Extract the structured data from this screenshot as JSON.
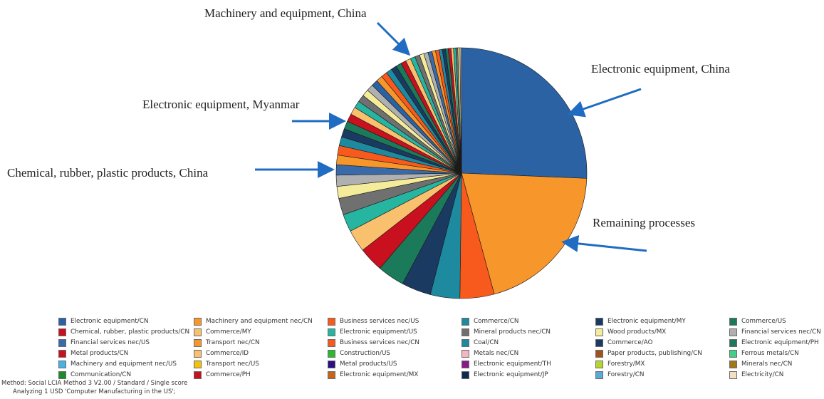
{
  "chart_data": {
    "type": "pie",
    "title": "",
    "colors": [
      "#2a62a3",
      "#f7962a",
      "#f75a1c",
      "#1e8aa0",
      "#1b3a62",
      "#1a7a5a",
      "#c8101f",
      "#f9c06e",
      "#26b5a0",
      "#707070",
      "#f4ec9a",
      "#b0b0b0",
      "#3a6aa8",
      "#f7962a",
      "#f75a1c",
      "#1e8aa0",
      "#1b3a62",
      "#1a7a5a",
      "#c8101f",
      "#f9c06e",
      "#26b5a0",
      "#707070",
      "#f4ec9a",
      "#b0b0b0"
    ],
    "slices": [
      {
        "label": "Electronic equipment/CN",
        "value": 25.0
      },
      {
        "label": "Remaining processes",
        "value": 19.6
      },
      {
        "label": "Machinery and equipment nec/CN",
        "value": 4.3
      },
      {
        "label": "Business services nec/US",
        "value": 3.7
      },
      {
        "label": "Commerce/CN",
        "value": 3.7
      },
      {
        "label": "Electronic equipment/MY",
        "value": 3.4
      },
      {
        "label": "Commerce/US",
        "value": 3.1
      },
      {
        "label": "Chemical, rubber, plastic products/CN",
        "value": 2.8
      },
      {
        "label": "Commerce/MY",
        "value": 2.2
      },
      {
        "label": "Electronic equipment/US",
        "value": 2.1
      },
      {
        "label": "Mineral products nec/CN",
        "value": 1.5
      },
      {
        "label": "Wood products/MX",
        "value": 1.4
      },
      {
        "label": "Financial services nec/CN",
        "value": 1.3
      },
      {
        "label": "Financial services nec/US",
        "value": 1.2
      },
      {
        "label": "Transport nec/CN",
        "value": 1.2
      },
      {
        "label": "Business services nec/CN",
        "value": 1.1
      },
      {
        "label": "Coal/CN",
        "value": 1.05
      },
      {
        "label": "Commerce/AO",
        "value": 1.0
      },
      {
        "label": "Electronic equipment/PH",
        "value": 1.0
      },
      {
        "label": "Metal products/CN",
        "value": 0.95
      },
      {
        "label": "Commerce/ID",
        "value": 0.9
      },
      {
        "label": "Construction/US",
        "value": 0.9
      },
      {
        "label": "Metals nec/CN",
        "value": 0.85
      },
      {
        "label": "Paper products, publishing/CN",
        "value": 0.85
      },
      {
        "label": "Ferrous metals/CN",
        "value": 0.8
      },
      {
        "label": "Machinery and equipment nec/US",
        "value": 0.8
      },
      {
        "label": "Transport nec/US",
        "value": 0.75
      },
      {
        "label": "Metal products/US",
        "value": 0.75
      },
      {
        "label": "Electronic equipment/TH",
        "value": 0.7
      },
      {
        "label": "Forestry/MX",
        "value": 0.7
      },
      {
        "label": "Minerals nec/CN",
        "value": 0.65
      },
      {
        "label": "Communication/CN",
        "value": 0.65
      },
      {
        "label": "Commerce/PH",
        "value": 0.6
      },
      {
        "label": "Electronic equipment/MX",
        "value": 0.6
      },
      {
        "label": "Electronic equipment/JP",
        "value": 0.55
      },
      {
        "label": "Forestry/CN",
        "value": 0.55
      },
      {
        "label": "Electricity/CN",
        "value": 0.5
      },
      {
        "label": "",
        "value": 0.45
      },
      {
        "label": "",
        "value": 0.45
      },
      {
        "label": "",
        "value": 0.4
      },
      {
        "label": "",
        "value": 0.4
      },
      {
        "label": "",
        "value": 0.35
      },
      {
        "label": "",
        "value": 0.35
      },
      {
        "label": "",
        "value": 0.3
      },
      {
        "label": "",
        "value": 0.3
      },
      {
        "label": "",
        "value": 0.25
      },
      {
        "label": "",
        "value": 0.25
      },
      {
        "label": "",
        "value": 0.2
      }
    ],
    "legend_position": "bottom",
    "annotations": [
      "Machinery and equipment, China",
      "Electronic equipment, China",
      "Electronic equipment, Myanmar",
      "Chemical, rubber, plastic products, China",
      "Remaining processes"
    ],
    "legend": [
      {
        "label": "Electronic equipment/CN",
        "color": "#2a62a3"
      },
      {
        "label": "Machinery and equipment nec/CN",
        "color": "#f7962a"
      },
      {
        "label": "Business services nec/US",
        "color": "#f75a1c"
      },
      {
        "label": "Commerce/CN",
        "color": "#1e8aa0"
      },
      {
        "label": "Electronic equipment/MY",
        "color": "#1b3a62"
      },
      {
        "label": "Commerce/US",
        "color": "#1a7a5a"
      },
      {
        "label": "Chemical, rubber, plastic products/CN",
        "color": "#c8101f"
      },
      {
        "label": "Commerce/MY",
        "color": "#f9c06e"
      },
      {
        "label": "Electronic equipment/US",
        "color": "#26b5a0"
      },
      {
        "label": "Mineral products nec/CN",
        "color": "#707070"
      },
      {
        "label": "Wood products/MX",
        "color": "#f4ec9a"
      },
      {
        "label": "Financial services nec/CN",
        "color": "#b0b0b0"
      },
      {
        "label": "Financial services nec/US",
        "color": "#3a6aa8"
      },
      {
        "label": "Transport nec/CN",
        "color": "#f7962a"
      },
      {
        "label": "Business services nec/CN",
        "color": "#f75a1c"
      },
      {
        "label": "Coal/CN",
        "color": "#1e8aa0"
      },
      {
        "label": "Commerce/AO",
        "color": "#1b3a62"
      },
      {
        "label": "Electronic equipment/PH",
        "color": "#1a7a5a"
      },
      {
        "label": "Metal products/CN",
        "color": "#c8101f"
      },
      {
        "label": "Commerce/ID",
        "color": "#f9c06e"
      },
      {
        "label": "Construction/US",
        "color": "#2eb82e"
      },
      {
        "label": "Metals nec/CN",
        "color": "#f4b6c2"
      },
      {
        "label": "Paper products, publishing/CN",
        "color": "#a0521a"
      },
      {
        "label": "Ferrous metals/CN",
        "color": "#3fd08a"
      },
      {
        "label": "Machinery and equipment nec/US",
        "color": "#4ab0e6"
      },
      {
        "label": "Transport nec/US",
        "color": "#f2c20a"
      },
      {
        "label": "Metal products/US",
        "color": "#2a1080"
      },
      {
        "label": "Electronic equipment/TH",
        "color": "#8a1a8a"
      },
      {
        "label": "Forestry/MX",
        "color": "#b8d430"
      },
      {
        "label": "Minerals nec/CN",
        "color": "#a07818"
      },
      {
        "label": "Communication/CN",
        "color": "#1a8a2a"
      },
      {
        "label": "Commerce/PH",
        "color": "#c8101f"
      },
      {
        "label": "Electronic equipment/MX",
        "color": "#c8641a"
      },
      {
        "label": "Electronic equipment/JP",
        "color": "#0e2a50"
      },
      {
        "label": "Forestry/CN",
        "color": "#5aaad6"
      },
      {
        "label": "Electricity/CN",
        "color": "#f2e0c0"
      }
    ]
  },
  "footer": {
    "method_line": "Method: Social LCIA Method 3 V2.00 / Standard / Single score",
    "analyzing_line": "Analyzing 1 USD 'Computer Manufacturing in the US';"
  }
}
